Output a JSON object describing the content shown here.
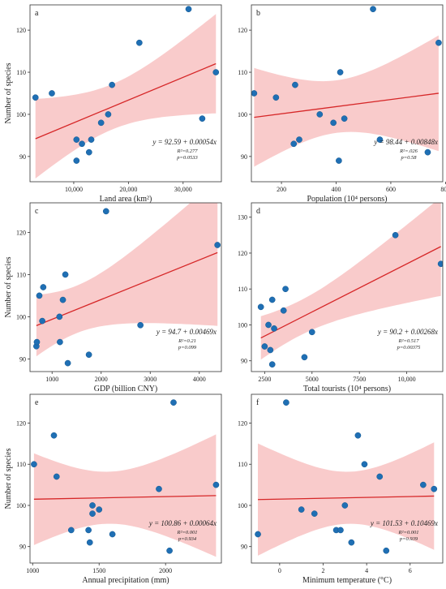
{
  "figure": {
    "shared_ylabel": "Number of species"
  },
  "chart_data": [
    {
      "type": "scatter",
      "panel": "a",
      "xlabel": "Land area (km²)",
      "ylabel": "Number of species",
      "xlim": [
        2000,
        37000
      ],
      "ylim": [
        84,
        126
      ],
      "xticks": [
        10000,
        20000,
        30000
      ],
      "xtick_labels": [
        "10,000",
        "20,000",
        "30,000"
      ],
      "yticks": [
        90,
        100,
        110,
        120
      ],
      "equation": "y = 92.59 + 0.00054x",
      "r2": "R²=0.277",
      "p": "p=0.0533",
      "fit": {
        "intercept": 92.59,
        "slope": 0.00054
      },
      "points": [
        {
          "x": 3000,
          "y": 104
        },
        {
          "x": 6000,
          "y": 105
        },
        {
          "x": 10500,
          "y": 94
        },
        {
          "x": 10500,
          "y": 89
        },
        {
          "x": 11500,
          "y": 93
        },
        {
          "x": 12800,
          "y": 91
        },
        {
          "x": 13200,
          "y": 94
        },
        {
          "x": 15000,
          "y": 98
        },
        {
          "x": 16300,
          "y": 100
        },
        {
          "x": 17000,
          "y": 107
        },
        {
          "x": 22000,
          "y": 117
        },
        {
          "x": 31000,
          "y": 125
        },
        {
          "x": 33500,
          "y": 99
        },
        {
          "x": 36000,
          "y": 110
        }
      ]
    },
    {
      "type": "scatter",
      "panel": "b",
      "xlabel": "Population (10⁴ persons)",
      "ylabel": "",
      "xlim": [
        90,
        790
      ],
      "ylim": [
        84,
        126
      ],
      "xticks": [
        200,
        400,
        600,
        800
      ],
      "xtick_labels": [
        "200",
        "400",
        "600",
        "800"
      ],
      "yticks": [
        90,
        100,
        110,
        120
      ],
      "equation": "y = 98.44 + 0.00848x",
      "r2": "R²=.026",
      "p": "p=0.58",
      "fit": {
        "intercept": 98.44,
        "slope": 0.00848
      },
      "points": [
        {
          "x": 100,
          "y": 105
        },
        {
          "x": 180,
          "y": 104
        },
        {
          "x": 245,
          "y": 93
        },
        {
          "x": 250,
          "y": 107
        },
        {
          "x": 265,
          "y": 94
        },
        {
          "x": 340,
          "y": 100
        },
        {
          "x": 390,
          "y": 98
        },
        {
          "x": 410,
          "y": 89
        },
        {
          "x": 415,
          "y": 110
        },
        {
          "x": 430,
          "y": 99
        },
        {
          "x": 535,
          "y": 125
        },
        {
          "x": 560,
          "y": 94
        },
        {
          "x": 735,
          "y": 91
        },
        {
          "x": 775,
          "y": 117
        }
      ]
    },
    {
      "type": "scatter",
      "panel": "c",
      "xlabel": "GDP (billion CNY)",
      "ylabel": "Number of species",
      "xlim": [
        550,
        4450
      ],
      "ylim": [
        87,
        127
      ],
      "xticks": [
        1000,
        2000,
        3000,
        4000
      ],
      "xtick_labels": [
        "1000",
        "2000",
        "3000",
        "4000"
      ],
      "yticks": [
        90,
        100,
        110,
        120
      ],
      "equation": "y = 94.7 + 0.00469x",
      "r2": "R²=0.21",
      "p": "p=0.099",
      "fit": {
        "intercept": 94.7,
        "slope": 0.00469
      },
      "points": [
        {
          "x": 680,
          "y": 93
        },
        {
          "x": 690,
          "y": 94
        },
        {
          "x": 740,
          "y": 105
        },
        {
          "x": 820,
          "y": 107
        },
        {
          "x": 800,
          "y": 99
        },
        {
          "x": 1150,
          "y": 100
        },
        {
          "x": 1160,
          "y": 94
        },
        {
          "x": 1220,
          "y": 104
        },
        {
          "x": 1270,
          "y": 110
        },
        {
          "x": 1320,
          "y": 89
        },
        {
          "x": 1750,
          "y": 91
        },
        {
          "x": 2100,
          "y": 125
        },
        {
          "x": 2800,
          "y": 98
        },
        {
          "x": 4370,
          "y": 117
        }
      ]
    },
    {
      "type": "scatter",
      "panel": "d",
      "xlabel": "Total tourists (10⁴ persons)",
      "ylabel": "",
      "xlim": [
        1800,
        11900
      ],
      "ylim": [
        87,
        134
      ],
      "xticks": [
        2500,
        5000,
        7500,
        10000
      ],
      "xtick_labels": [
        "2500",
        "5000",
        "7500",
        "10,000"
      ],
      "yticks": [
        90,
        100,
        110,
        120,
        130
      ],
      "equation": "y = 90.2 + 0.00268x",
      "r2": "R²=0.517",
      "p": "p=0.00375",
      "fit": {
        "intercept": 90.2,
        "slope": 0.00268
      },
      "points": [
        {
          "x": 2300,
          "y": 105
        },
        {
          "x": 2500,
          "y": 94
        },
        {
          "x": 2700,
          "y": 100
        },
        {
          "x": 2800,
          "y": 93
        },
        {
          "x": 2900,
          "y": 107
        },
        {
          "x": 2900,
          "y": 89
        },
        {
          "x": 3000,
          "y": 99
        },
        {
          "x": 3500,
          "y": 104
        },
        {
          "x": 3600,
          "y": 110
        },
        {
          "x": 4600,
          "y": 91
        },
        {
          "x": 5000,
          "y": 98
        },
        {
          "x": 9400,
          "y": 125
        },
        {
          "x": 11800,
          "y": 117
        }
      ]
    },
    {
      "type": "scatter",
      "panel": "e",
      "xlabel": "Annual precipitation (mm)",
      "ylabel": "Number of species",
      "xlim": [
        980,
        2420
      ],
      "ylim": [
        86,
        127
      ],
      "xticks": [
        1000,
        1500,
        2000
      ],
      "xtick_labels": [
        "1000",
        "1500",
        "2000"
      ],
      "yticks": [
        90,
        100,
        110,
        120
      ],
      "equation": "y = 100.86 + 0.00064x",
      "r2": "R²=0.001",
      "p": "p=0.934",
      "fit": {
        "intercept": 100.86,
        "slope": 0.00064
      },
      "points": [
        {
          "x": 1010,
          "y": 110
        },
        {
          "x": 1160,
          "y": 117
        },
        {
          "x": 1180,
          "y": 107
        },
        {
          "x": 1290,
          "y": 94
        },
        {
          "x": 1420,
          "y": 94
        },
        {
          "x": 1430,
          "y": 91
        },
        {
          "x": 1450,
          "y": 100
        },
        {
          "x": 1450,
          "y": 98
        },
        {
          "x": 1500,
          "y": 99
        },
        {
          "x": 1600,
          "y": 93
        },
        {
          "x": 1950,
          "y": 104
        },
        {
          "x": 2030,
          "y": 89
        },
        {
          "x": 2060,
          "y": 125
        },
        {
          "x": 2380,
          "y": 105
        }
      ]
    },
    {
      "type": "scatter",
      "panel": "f",
      "xlabel": "Minimum temperature (°C)",
      "ylabel": "",
      "xlim": [
        -1.3,
        7.5
      ],
      "ylim": [
        86,
        127
      ],
      "xticks": [
        0,
        2,
        4,
        6
      ],
      "xtick_labels": [
        "0",
        "2",
        "4",
        "6"
      ],
      "yticks": [
        90,
        100,
        110,
        120
      ],
      "equation": "y = 101.53 + 0.10469x",
      "r2": "R²=0.001",
      "p": "p=0.939",
      "fit": {
        "intercept": 101.53,
        "slope": 0.10469
      },
      "points": [
        {
          "x": -1.0,
          "y": 93
        },
        {
          "x": 0.3,
          "y": 125
        },
        {
          "x": 1.0,
          "y": 99
        },
        {
          "x": 1.6,
          "y": 98
        },
        {
          "x": 2.6,
          "y": 94
        },
        {
          "x": 2.8,
          "y": 94
        },
        {
          "x": 3.0,
          "y": 100
        },
        {
          "x": 3.3,
          "y": 91
        },
        {
          "x": 3.6,
          "y": 117
        },
        {
          "x": 3.9,
          "y": 110
        },
        {
          "x": 4.6,
          "y": 107
        },
        {
          "x": 4.9,
          "y": 89
        },
        {
          "x": 6.6,
          "y": 105
        },
        {
          "x": 7.1,
          "y": 104
        }
      ]
    }
  ]
}
